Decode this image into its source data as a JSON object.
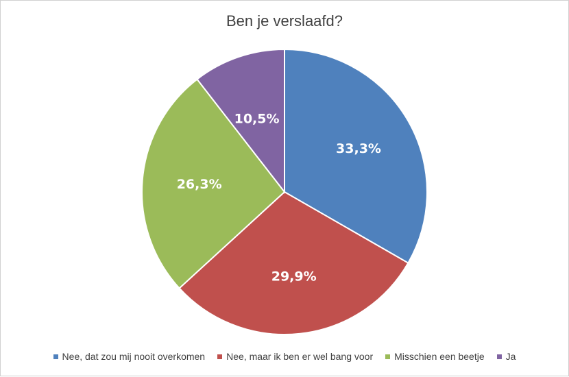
{
  "chart_data": {
    "type": "pie",
    "title": "Ben je verslaafd?",
    "categories": [
      "Nee, dat zou mij nooit overkomen",
      "Nee, maar ik ben er wel bang voor",
      "Misschien een beetje",
      "Ja"
    ],
    "values": [
      33.3,
      29.9,
      26.3,
      10.5
    ],
    "labels": [
      "33,3%",
      "29,9%",
      "26,3%",
      "10,5%"
    ],
    "colors": [
      "#4f81bd",
      "#c0504d",
      "#9bbb59",
      "#8064a2"
    ],
    "legend_position": "bottom"
  }
}
